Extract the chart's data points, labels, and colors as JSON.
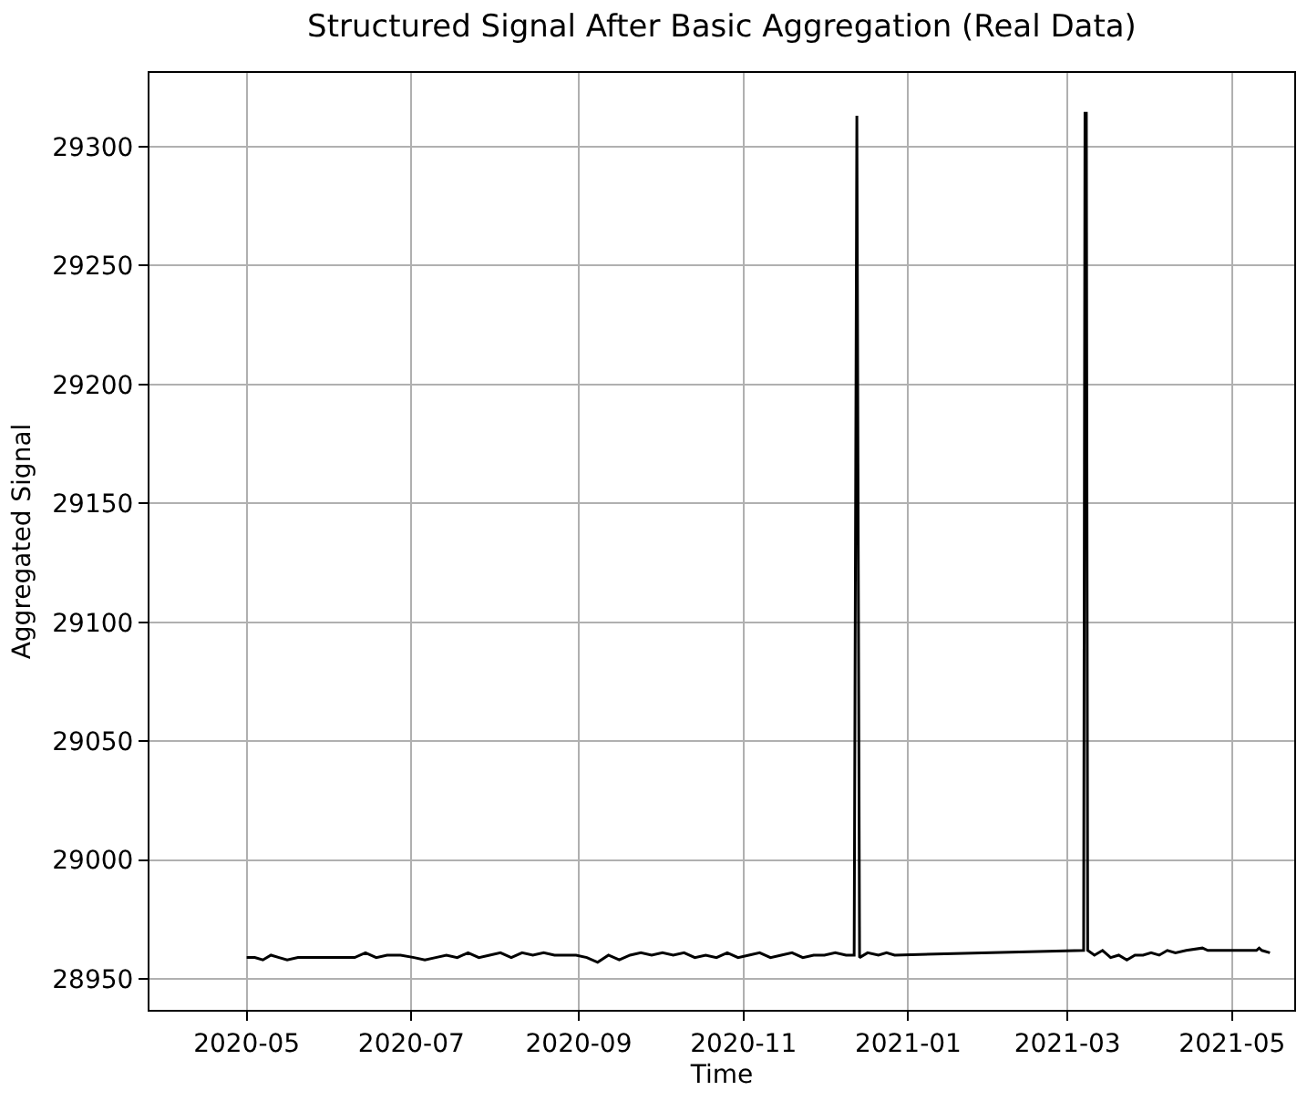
{
  "chart_data": {
    "type": "line",
    "title": "Structured Signal After Basic Aggregation (Real Data)",
    "xlabel": "Time",
    "ylabel": "Aggregated Signal",
    "x": [
      "2020-05-01",
      "2020-05-04",
      "2020-05-07",
      "2020-05-10",
      "2020-05-13",
      "2020-05-16",
      "2020-05-20",
      "2020-05-25",
      "2020-05-30",
      "2020-06-05",
      "2020-06-10",
      "2020-06-14",
      "2020-06-18",
      "2020-06-22",
      "2020-06-27",
      "2020-07-02",
      "2020-07-06",
      "2020-07-10",
      "2020-07-14",
      "2020-07-18",
      "2020-07-22",
      "2020-07-26",
      "2020-07-30",
      "2020-08-03",
      "2020-08-07",
      "2020-08-11",
      "2020-08-15",
      "2020-08-19",
      "2020-08-23",
      "2020-08-27",
      "2020-08-31",
      "2020-09-04",
      "2020-09-08",
      "2020-09-12",
      "2020-09-16",
      "2020-09-20",
      "2020-09-24",
      "2020-09-28",
      "2020-10-02",
      "2020-10-06",
      "2020-10-10",
      "2020-10-14",
      "2020-10-18",
      "2020-10-22",
      "2020-10-26",
      "2020-10-30",
      "2020-11-03",
      "2020-11-07",
      "2020-11-11",
      "2020-11-15",
      "2020-11-19",
      "2020-11-23",
      "2020-11-27",
      "2020-12-01",
      "2020-12-05",
      "2020-12-09",
      "2020-12-12",
      "2020-12-13",
      "2020-12-14",
      "2020-12-17",
      "2020-12-21",
      "2020-12-24",
      "2020-12-27",
      "2021-03-07",
      "2021-03-07T12:00",
      "2021-03-08",
      "2021-03-08T12:00",
      "2021-03-11",
      "2021-03-14",
      "2021-03-17",
      "2021-03-20",
      "2021-03-23",
      "2021-03-26",
      "2021-03-29",
      "2021-04-01",
      "2021-04-04",
      "2021-04-07",
      "2021-04-10",
      "2021-04-14",
      "2021-04-20",
      "2021-04-22",
      "2021-05-01",
      "2021-05-10",
      "2021-05-11",
      "2021-05-12",
      "2021-05-15"
    ],
    "series": [
      {
        "color": "#000000",
        "values": [
          28959,
          28959,
          28958,
          28960,
          28959,
          28958,
          28959,
          28959,
          28959,
          28959,
          28959,
          28961,
          28959,
          28960,
          28960,
          28959,
          28958,
          28959,
          28960,
          28959,
          28961,
          28959,
          28960,
          28961,
          28959,
          28961,
          28960,
          28961,
          28960,
          28960,
          28960,
          28959,
          28957,
          28960,
          28958,
          28960,
          28961,
          28960,
          28961,
          28960,
          28961,
          28959,
          28960,
          28959,
          28961,
          28959,
          28960,
          28961,
          28959,
          28960,
          28961,
          28959,
          28960,
          28960,
          28961,
          28960,
          28960,
          29313,
          28959,
          28961,
          28960,
          28961,
          28960,
          28962,
          29314,
          29314,
          28962,
          28960,
          28962,
          28959,
          28960,
          28958,
          28960,
          28960,
          28961,
          28960,
          28962,
          28961,
          28962,
          28963,
          28962,
          28962,
          28962,
          28963,
          28962,
          28961
        ]
      }
    ],
    "xlim": [
      "2020-03-26",
      "2021-05-24"
    ],
    "xticks": [
      {
        "value": "2020-05-01",
        "label": "2020-05"
      },
      {
        "value": "2020-07-01",
        "label": "2020-07"
      },
      {
        "value": "2020-09-01",
        "label": "2020-09"
      },
      {
        "value": "2020-11-01",
        "label": "2020-11"
      },
      {
        "value": "2021-01-01",
        "label": "2021-01"
      },
      {
        "value": "2021-03-01",
        "label": "2021-03"
      },
      {
        "value": "2021-05-01",
        "label": "2021-05"
      }
    ],
    "ylim": [
      28937,
      29331
    ],
    "yticks": [
      28950,
      29000,
      29050,
      29100,
      29150,
      29200,
      29250,
      29300
    ],
    "grid": true,
    "marker": "none",
    "line_style": "solid"
  }
}
